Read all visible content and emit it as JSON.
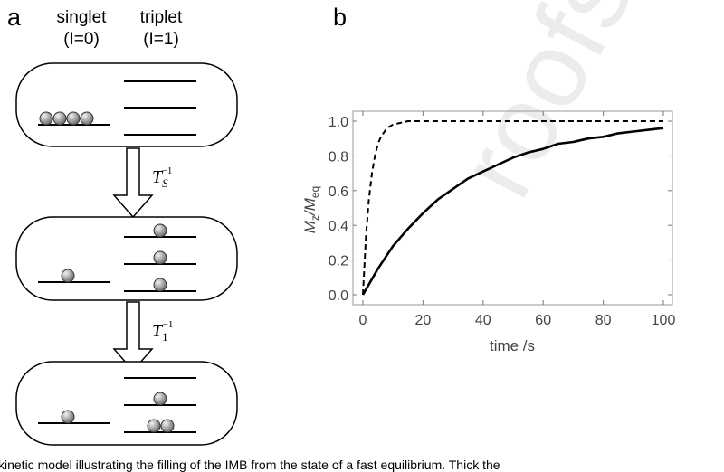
{
  "watermark": "roofs",
  "panel_a": {
    "letter": "a",
    "singlet_label": "singlet",
    "singlet_spin": "(I=0)",
    "triplet_label": "triplet",
    "triplet_spin": "(I=1)",
    "arrow1": {
      "symbol": "T",
      "sub": "S",
      "sup": "−1"
    },
    "arrow2": {
      "symbol": "T",
      "sub": "1",
      "sup": "−1"
    }
  },
  "panel_b": {
    "letter": "b",
    "xlabel": "time /s",
    "ylabel_main": "M",
    "ylabel_sub1": "z",
    "ylabel_sep": "/M",
    "ylabel_sub2": "eq"
  },
  "caption": "kinetic model illustrating the filling of the IMB from the state of a fast equilibrium. Thick the",
  "chart_data": {
    "type": "line",
    "title": "",
    "xlabel": "time /s",
    "ylabel": "Mz/Meq",
    "xlim": [
      0,
      100
    ],
    "ylim": [
      0,
      1.0
    ],
    "xticks": [
      0,
      20,
      40,
      60,
      80,
      100
    ],
    "yticks": [
      0.0,
      0.2,
      0.4,
      0.6,
      0.8,
      1.0
    ],
    "ytick_labels": [
      "0.0",
      "0.2",
      "0.4",
      "0.6",
      "0.8",
      "1.0"
    ],
    "grid": false,
    "series": [
      {
        "style": "dashed",
        "color": "#000000",
        "x": [
          0,
          1,
          2,
          3,
          4,
          5,
          6,
          8,
          10,
          15,
          20,
          40,
          60,
          80,
          100
        ],
        "y": [
          0,
          0.33,
          0.55,
          0.7,
          0.8,
          0.87,
          0.91,
          0.96,
          0.98,
          1.0,
          1.0,
          1.0,
          1.0,
          1.0,
          1.0
        ]
      },
      {
        "style": "solid",
        "color": "#000000",
        "x": [
          0,
          5,
          10,
          15,
          20,
          25,
          30,
          35,
          40,
          45,
          50,
          55,
          60,
          65,
          70,
          75,
          80,
          85,
          90,
          95,
          100
        ],
        "y": [
          0,
          0.15,
          0.28,
          0.38,
          0.47,
          0.55,
          0.61,
          0.67,
          0.71,
          0.75,
          0.79,
          0.82,
          0.84,
          0.87,
          0.88,
          0.9,
          0.91,
          0.93,
          0.94,
          0.95,
          0.96
        ]
      }
    ]
  }
}
